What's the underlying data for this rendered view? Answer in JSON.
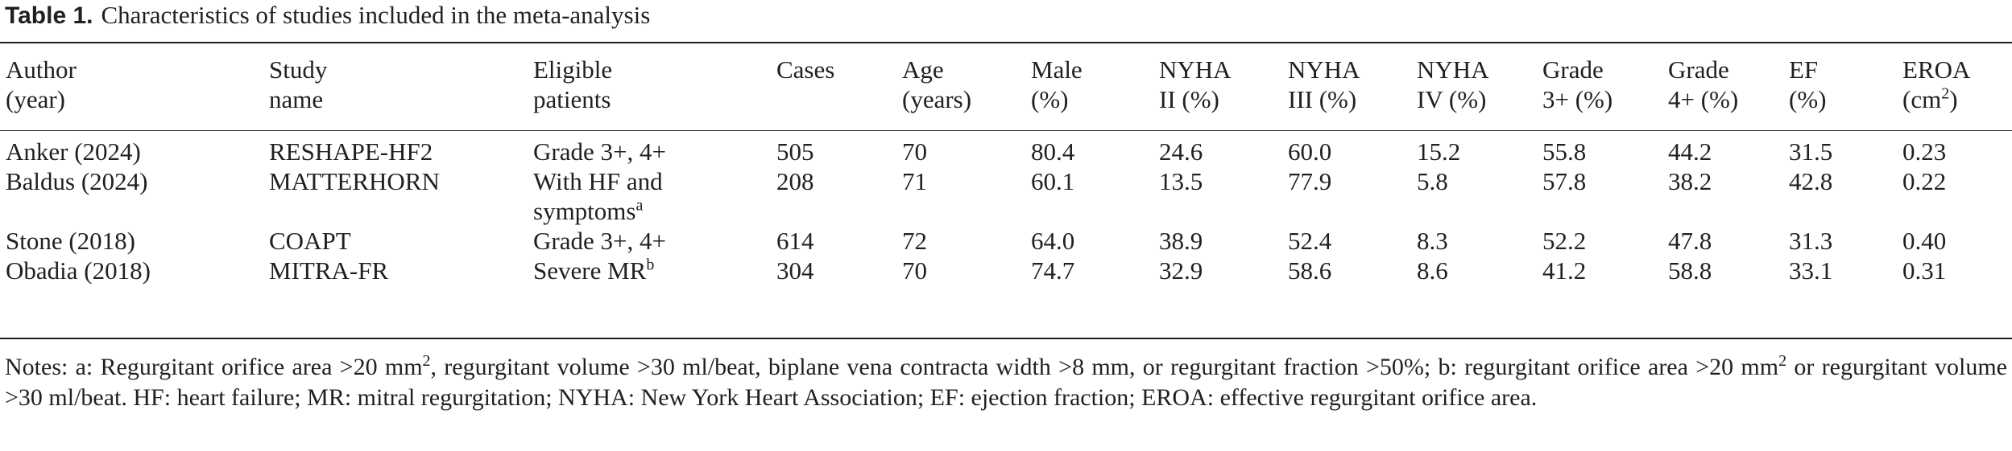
{
  "caption": {
    "label": "Table 1.",
    "title": "Characteristics of studies included in the meta-analysis"
  },
  "columns": [
    {
      "line1": "Author",
      "line2": "(year)"
    },
    {
      "line1": "Study",
      "line2": "name"
    },
    {
      "line1": "Eligible",
      "line2": "patients"
    },
    {
      "line1": "Cases",
      "line2": ""
    },
    {
      "line1": "Age",
      "line2": "(years)"
    },
    {
      "line1": "Male",
      "line2": "(%)"
    },
    {
      "line1": "NYHA",
      "line2": "II (%)"
    },
    {
      "line1": "NYHA",
      "line2": "III (%)"
    },
    {
      "line1": "NYHA",
      "line2": "IV (%)"
    },
    {
      "line1": "Grade",
      "line2": "3+ (%)"
    },
    {
      "line1": "Grade",
      "line2": "4+ (%)"
    },
    {
      "line1": "EF",
      "line2": "(%)"
    },
    {
      "line1": "EROA",
      "line2": "(cm",
      "line2_sup": "2",
      "line2_after": ")"
    }
  ],
  "rows": [
    {
      "author": "Anker (2024)",
      "study": "RESHAPE-HF2",
      "eligible": "Grade 3+, 4+",
      "eligible_sup": "",
      "cases": "505",
      "age": "70",
      "male": "80.4",
      "nyha2": "24.6",
      "nyha3": "60.0",
      "nyha4": "15.2",
      "grade3": "55.8",
      "grade4": "44.2",
      "ef": "31.5",
      "eroa": "0.23"
    },
    {
      "author": "Baldus (2024)",
      "study": "MATTERHORN",
      "eligible": "With HF and symptoms",
      "eligible_sup": "a",
      "cases": "208",
      "age": "71",
      "male": "60.1",
      "nyha2": "13.5",
      "nyha3": "77.9",
      "nyha4": "5.8",
      "grade3": "57.8",
      "grade4": "38.2",
      "ef": "42.8",
      "eroa": "0.22"
    },
    {
      "author": "Stone (2018)",
      "study": "COAPT",
      "eligible": "Grade 3+, 4+",
      "eligible_sup": "",
      "cases": "614",
      "age": "72",
      "male": "64.0",
      "nyha2": "38.9",
      "nyha3": "52.4",
      "nyha4": "8.3",
      "grade3": "52.2",
      "grade4": "47.8",
      "ef": "31.3",
      "eroa": "0.40"
    },
    {
      "author": "Obadia (2018)",
      "study": "MITRA-FR",
      "eligible": "Severe MR",
      "eligible_sup": "b",
      "cases": "304",
      "age": "70",
      "male": "74.7",
      "nyha2": "32.9",
      "nyha3": "58.6",
      "nyha4": "8.6",
      "grade3": "41.2",
      "grade4": "58.8",
      "ef": "33.1",
      "eroa": "0.31"
    }
  ],
  "notes": {
    "p1": "Notes: a: Regurgitant orifice area >20 mm",
    "sup1": "2",
    "p2": ", regurgitant volume >30 ml/beat, biplane vena contracta width >8 mm, or regurgitant fraction >50%; b: regurgitant orifice area >20 mm",
    "sup2": "2",
    "p3": " or regurgitant volume >30 ml/beat. HF: heart failure; MR: mitral regurgitation; NYHA: New York Heart Association; EF: ejection fraction; EROA: effective regurgitant orifice area."
  }
}
